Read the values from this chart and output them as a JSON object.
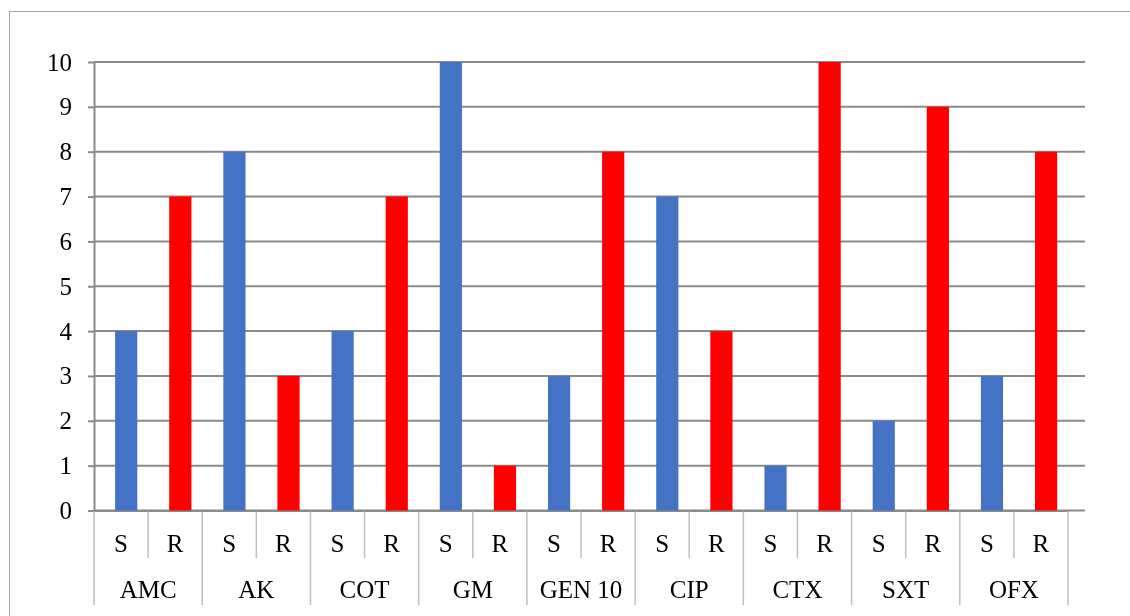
{
  "chart_data": {
    "type": "bar",
    "categories": [
      "AMC",
      "AK",
      "COT",
      "GM",
      "GEN 10",
      "CIP",
      "CTX",
      "SXT",
      "OFX"
    ],
    "series": [
      {
        "name": "S",
        "color": "#4472c4",
        "values": [
          4,
          8,
          4,
          10,
          3,
          7,
          1,
          2,
          3
        ]
      },
      {
        "name": "R",
        "color": "#ff0000",
        "values": [
          7,
          3,
          7,
          1,
          8,
          4,
          10,
          9,
          8
        ]
      }
    ],
    "ylim": [
      0,
      10
    ],
    "yticks": [
      0,
      1,
      2,
      3,
      4,
      5,
      6,
      7,
      8,
      9,
      10
    ],
    "grid": "y"
  }
}
